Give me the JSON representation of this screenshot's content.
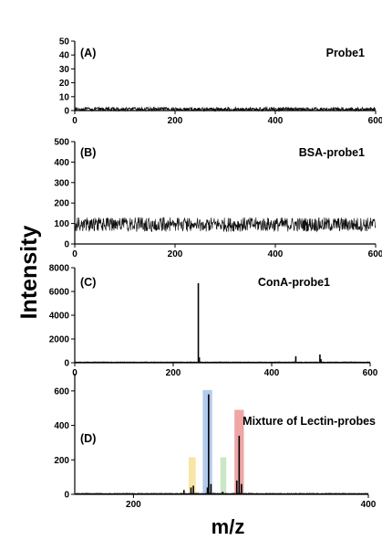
{
  "figure": {
    "ylabel": "Intensity",
    "xlabel": "m/z"
  },
  "chart_data": [
    {
      "type": "line",
      "panel_label": "(A)",
      "title": "Probe1",
      "xlim": [
        0,
        600
      ],
      "ylim": [
        0,
        50
      ],
      "xticks": [
        0,
        200,
        400,
        600
      ],
      "yticks": [
        0,
        10,
        20,
        30,
        40,
        50
      ],
      "xtick_labels": [
        "0",
        "200",
        "400",
        "600"
      ],
      "ytick_labels": [
        "0",
        "10",
        "20",
        "30",
        "40",
        "50"
      ],
      "noise": {
        "baseline": 1.0,
        "amplitude": 1.2
      },
      "peaks": []
    },
    {
      "type": "line",
      "panel_label": "(B)",
      "title": "BSA-probe1",
      "xlim": [
        0,
        600
      ],
      "ylim": [
        0,
        500
      ],
      "xticks": [
        0,
        200,
        400,
        600
      ],
      "yticks": [
        0,
        100,
        200,
        300,
        400,
        500
      ],
      "xtick_labels": [
        "0",
        "200",
        "400",
        "600"
      ],
      "ytick_labels": [
        "0",
        "100",
        "200",
        "300",
        "400",
        "500"
      ],
      "noise": {
        "baseline": 95,
        "amplitude": 35
      },
      "peaks": []
    },
    {
      "type": "line",
      "panel_label": "(C)",
      "title": "ConA-probe1",
      "xlim": [
        0,
        600
      ],
      "ylim": [
        0,
        8000
      ],
      "xticks": [
        0,
        200,
        400,
        600
      ],
      "yticks": [
        0,
        2000,
        4000,
        6000,
        8000
      ],
      "xtick_labels": [
        "0",
        "200",
        "400",
        "600"
      ],
      "ytick_labels": [
        "0",
        "2000",
        "4000",
        "6000",
        "8000"
      ],
      "noise": {
        "baseline": 50,
        "amplitude": 20
      },
      "peaks": [
        {
          "x": 251,
          "y": 6700
        },
        {
          "x": 253,
          "y": 450
        },
        {
          "x": 449,
          "y": 550
        },
        {
          "x": 498,
          "y": 700
        },
        {
          "x": 500,
          "y": 300
        }
      ]
    },
    {
      "type": "line",
      "panel_label": "(D)",
      "title": "Mixture of Lectin-probes",
      "xlim": [
        150,
        400
      ],
      "ylim": [
        0,
        700
      ],
      "xticks": [
        200,
        400
      ],
      "yticks": [
        0,
        200,
        400,
        600
      ],
      "xtick_labels": [
        "200",
        "400"
      ],
      "ytick_labels": [
        "0",
        "200",
        "400",
        "600"
      ],
      "noise": {
        "baseline": 4,
        "amplitude": 2
      },
      "peaks": [
        {
          "x": 243,
          "y": 25
        },
        {
          "x": 249,
          "y": 40
        },
        {
          "x": 251,
          "y": 50
        },
        {
          "x": 263,
          "y": 40
        },
        {
          "x": 264,
          "y": 580
        },
        {
          "x": 266,
          "y": 60
        },
        {
          "x": 276,
          "y": 15
        },
        {
          "x": 288,
          "y": 80
        },
        {
          "x": 290,
          "y": 340
        },
        {
          "x": 292,
          "y": 60
        }
      ],
      "highlights": [
        {
          "x_start": 247,
          "x_end": 253,
          "y": 215,
          "color": "#f5d36b"
        },
        {
          "x_start": 259,
          "x_end": 267,
          "y": 605,
          "color": "#7fa7de"
        },
        {
          "x_start": 274,
          "x_end": 279,
          "y": 215,
          "color": "#a7d7a0"
        },
        {
          "x_start": 286,
          "x_end": 294,
          "y": 490,
          "color": "#e26b6b"
        }
      ]
    }
  ]
}
